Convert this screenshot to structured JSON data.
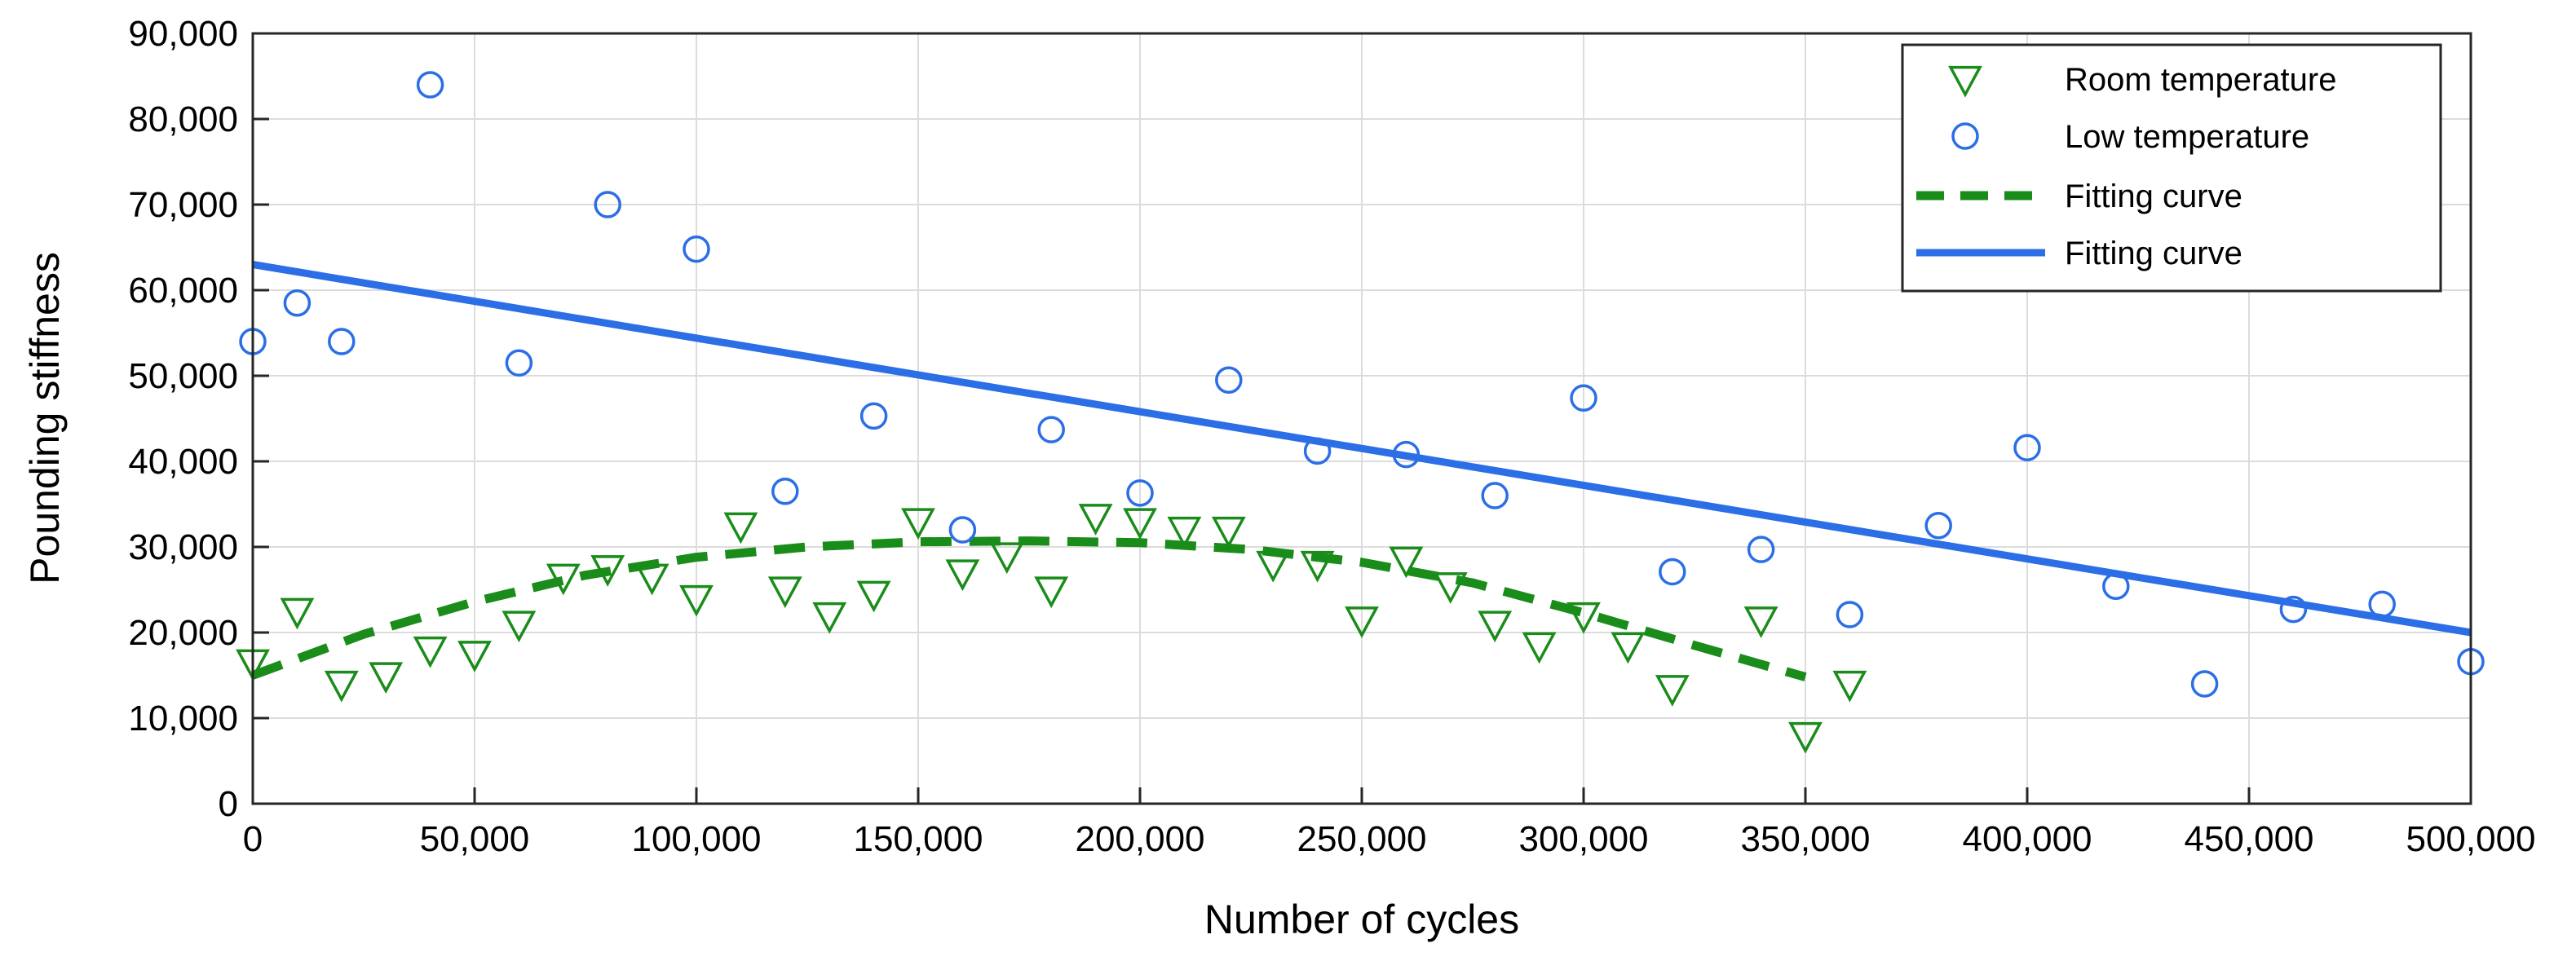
{
  "chart_data": {
    "type": "scatter",
    "title": "",
    "xlabel": "Number of cycles",
    "ylabel": "Pounding stiffness",
    "xlim": [
      0,
      500000
    ],
    "ylim": [
      0,
      90000
    ],
    "xticks": [
      0,
      50000,
      100000,
      150000,
      200000,
      250000,
      300000,
      350000,
      400000,
      450000,
      500000
    ],
    "yticks": [
      0,
      10000,
      20000,
      30000,
      40000,
      50000,
      60000,
      70000,
      80000,
      90000
    ],
    "xtick_labels": [
      "0",
      "50,000",
      "100,000",
      "150,000",
      "200,000",
      "250,000",
      "300,000",
      "350,000",
      "400,000",
      "450,000",
      "500,000"
    ],
    "ytick_labels": [
      "0",
      "10,000",
      "20,000",
      "30,000",
      "40,000",
      "50,000",
      "60,000",
      "70,000",
      "80,000",
      "90,000"
    ],
    "grid": true,
    "legend_position": "top-right",
    "series": [
      {
        "name": "Room temperature",
        "kind": "scatter",
        "marker": "triangle-down",
        "color": "#1a8c1a",
        "x": [
          0,
          10000,
          20000,
          30000,
          40000,
          50000,
          60000,
          70000,
          80000,
          90000,
          100000,
          110000,
          120000,
          130000,
          140000,
          150000,
          160000,
          170000,
          180000,
          190000,
          200000,
          210000,
          220000,
          230000,
          240000,
          250000,
          260000,
          270000,
          280000,
          290000,
          300000,
          310000,
          320000,
          340000,
          350000,
          360000
        ],
        "y": [
          16500,
          22500,
          14000,
          15000,
          18000,
          17500,
          21000,
          26500,
          27500,
          26500,
          24000,
          32500,
          25000,
          22000,
          24500,
          33000,
          27000,
          29000,
          25000,
          33500,
          33000,
          32000,
          32000,
          28000,
          28000,
          21500,
          28500,
          25500,
          21000,
          18500,
          22000,
          18500,
          13500,
          21500,
          8000,
          14000
        ]
      },
      {
        "name": "Low temperature",
        "kind": "scatter",
        "marker": "circle",
        "color": "#2b6ee6",
        "x": [
          0,
          10000,
          20000,
          40000,
          60000,
          80000,
          100000,
          120000,
          140000,
          160000,
          180000,
          200000,
          220000,
          240000,
          260000,
          280000,
          300000,
          320000,
          340000,
          360000,
          380000,
          400000,
          420000,
          440000,
          460000,
          480000,
          500000
        ],
        "y": [
          54000,
          58500,
          54000,
          84000,
          51500,
          70000,
          64800,
          36500,
          45300,
          32000,
          43700,
          36300,
          49500,
          41200,
          40800,
          36000,
          47400,
          27100,
          29700,
          22100,
          32500,
          41600,
          25400,
          14000,
          22700,
          23300,
          16600
        ]
      },
      {
        "name": "Fitting curve",
        "kind": "line",
        "style": "dashed",
        "color": "#1a8c1a",
        "x": [
          0,
          25000,
          50000,
          75000,
          100000,
          125000,
          150000,
          175000,
          200000,
          225000,
          250000,
          275000,
          300000,
          325000,
          350000
        ],
        "y": [
          15000,
          19800,
          23600,
          26700,
          28800,
          30000,
          30600,
          30700,
          30500,
          29700,
          28200,
          25800,
          22300,
          18500,
          14800
        ]
      },
      {
        "name": "Fitting curve",
        "kind": "line",
        "style": "solid",
        "color": "#2b6ee6",
        "x": [
          0,
          500000
        ],
        "y": [
          63000,
          20000
        ]
      }
    ]
  }
}
